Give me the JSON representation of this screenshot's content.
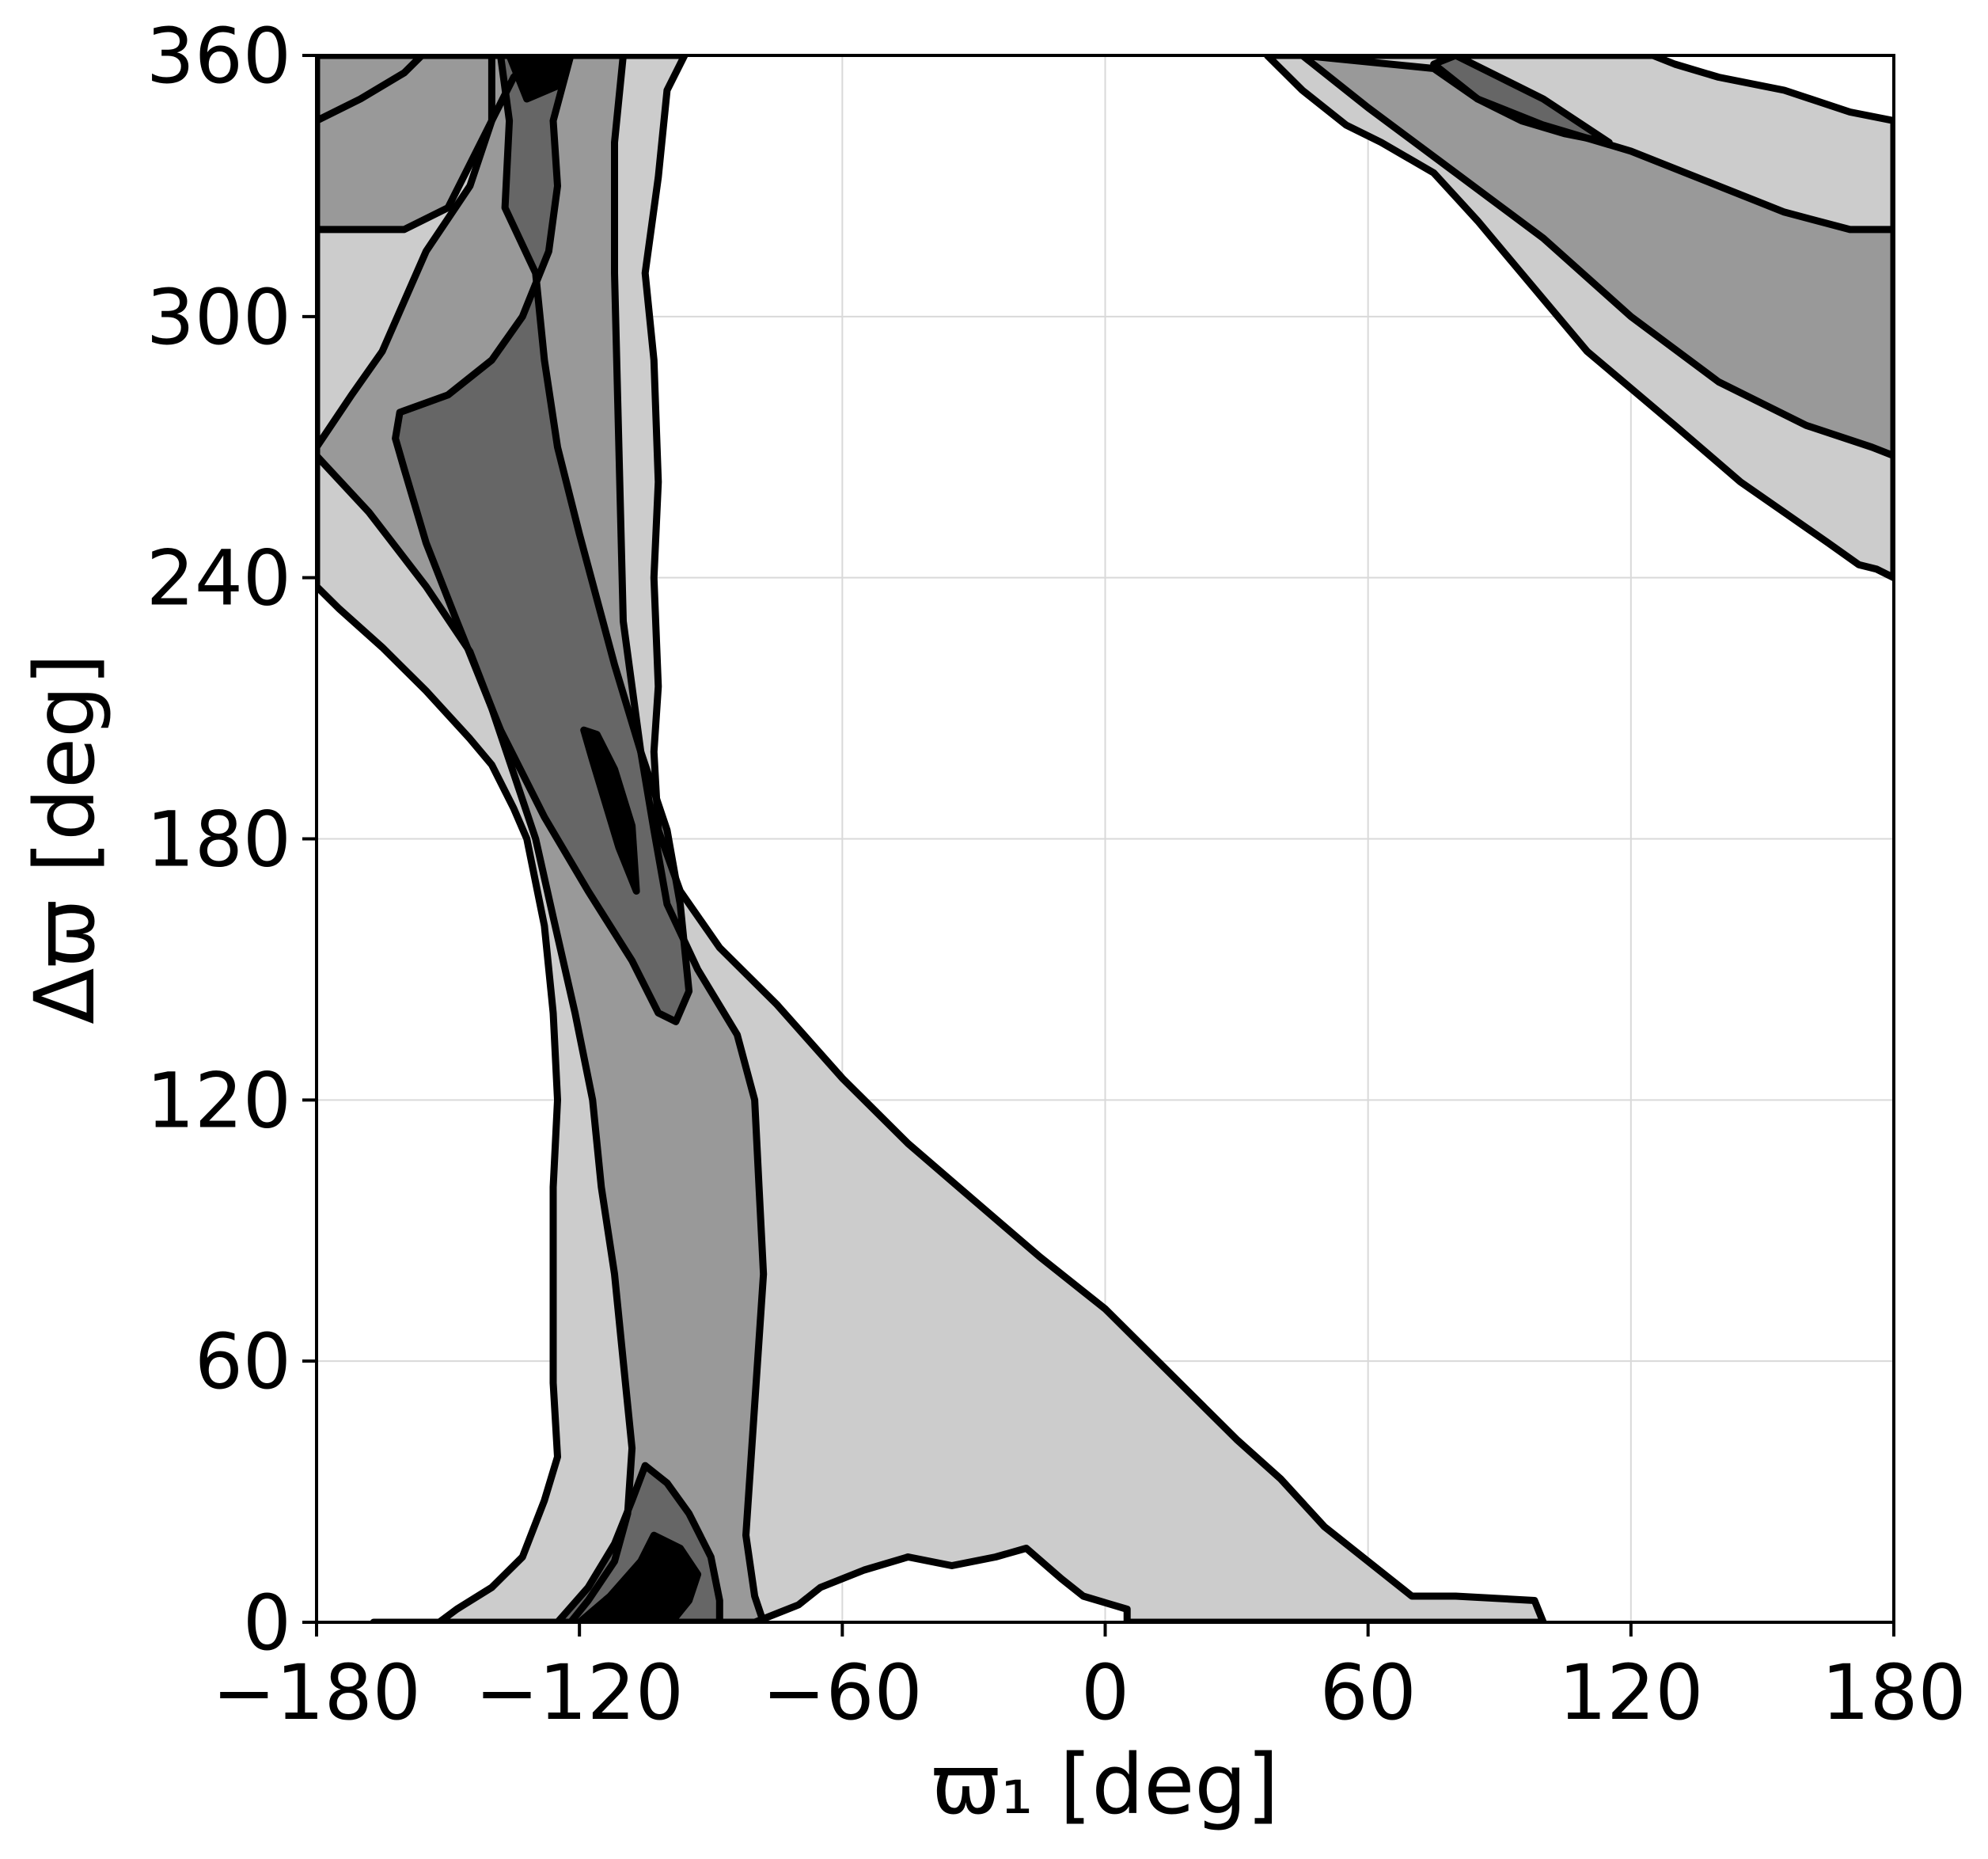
{
  "chart_data": {
    "type": "contour",
    "xlabel": "ϖ₁ [deg]",
    "ylabel": "Δϖ [deg]",
    "xlim": [
      -180,
      180
    ],
    "ylim": [
      0,
      360
    ],
    "xticks": [
      "−180",
      "−120",
      "−60",
      "0",
      "60",
      "120",
      "180"
    ],
    "yticks": [
      "0",
      "60",
      "120",
      "180",
      "240",
      "300",
      "360"
    ],
    "xtick_values": [
      -180,
      -120,
      -60,
      0,
      60,
      120,
      180
    ],
    "ytick_values": [
      0,
      60,
      120,
      180,
      240,
      300,
      360
    ],
    "grid": true,
    "colors": {
      "level1": "#cccccc",
      "level2": "#999999",
      "level3": "#666666",
      "level4": "#000000",
      "line": "#000000"
    },
    "levels": [
      {
        "level": 1,
        "regions": [
          [
            [
              -180,
              238
            ],
            [
              -175,
              233
            ],
            [
              -165,
              224
            ],
            [
              -155,
              214
            ],
            [
              -145,
              203
            ],
            [
              -140,
              197
            ],
            [
              -135,
              187
            ],
            [
              -132,
              180
            ],
            [
              -128,
              160
            ],
            [
              -126,
              140
            ],
            [
              -125,
              120
            ],
            [
              -126,
              100
            ],
            [
              -126,
              80
            ],
            [
              -126,
              55
            ],
            [
              -125,
              38
            ],
            [
              -128,
              28
            ],
            [
              -133,
              15
            ],
            [
              -140,
              8
            ],
            [
              -148,
              3
            ],
            [
              -152,
              0
            ],
            [
              -155,
              0
            ],
            [
              -160,
              0
            ],
            [
              -167,
              0
            ],
            [
              -80,
              0
            ],
            [
              -70,
              4
            ],
            [
              -65,
              8
            ],
            [
              -55,
              12
            ],
            [
              -45,
              15
            ],
            [
              -35,
              13
            ],
            [
              -25,
              15
            ],
            [
              -18,
              17
            ],
            [
              -10,
              10
            ],
            [
              -5,
              6
            ],
            [
              5,
              3
            ],
            [
              5,
              0
            ],
            [
              100,
              0
            ],
            [
              98,
              5
            ],
            [
              80,
              6
            ],
            [
              70,
              6
            ],
            [
              65,
              10
            ],
            [
              50,
              22
            ],
            [
              40,
              33
            ],
            [
              30,
              42
            ],
            [
              20,
              52
            ],
            [
              10,
              62
            ],
            [
              0,
              72
            ],
            [
              -5,
              76
            ],
            [
              -15,
              84
            ],
            [
              -30,
              97
            ],
            [
              -45,
              110
            ],
            [
              -60,
              125
            ],
            [
              -75,
              142
            ],
            [
              -88,
              155
            ],
            [
              -97,
              168
            ],
            [
              -102,
              182
            ],
            [
              -103,
              200
            ],
            [
              -102,
              215
            ],
            [
              -103,
              240
            ],
            [
              -102,
              262
            ],
            [
              -103,
              290
            ],
            [
              -105,
              310
            ],
            [
              -102,
              332
            ],
            [
              -100,
              352
            ],
            [
              -96,
              360
            ],
            [
              -180,
              360
            ]
          ],
          [
            [
              -180,
              345
            ],
            [
              -170,
              350
            ],
            [
              -160,
              356
            ],
            [
              -156,
              360
            ],
            [
              -180,
              360
            ]
          ],
          [
            [
              37,
              360
            ],
            [
              45,
              352
            ],
            [
              55,
              344
            ],
            [
              63,
              340
            ],
            [
              75,
              333
            ],
            [
              85,
              322
            ],
            [
              95,
              310
            ],
            [
              110,
              292
            ],
            [
              130,
              275
            ],
            [
              145,
              262
            ],
            [
              155,
              255
            ],
            [
              165,
              248
            ],
            [
              172,
              243
            ],
            [
              176,
              242
            ],
            [
              180,
              240
            ],
            [
              180,
              345
            ],
            [
              170,
              347
            ],
            [
              155,
              352
            ],
            [
              140,
              355
            ],
            [
              130,
              358
            ],
            [
              125,
              360
            ]
          ]
        ]
      },
      {
        "level": 2,
        "regions": [
          [
            [
              -180,
              320
            ],
            [
              -170,
              320
            ],
            [
              -160,
              320
            ],
            [
              -150,
              325
            ],
            [
              -145,
              335
            ],
            [
              -140,
              345
            ],
            [
              -135,
              355
            ],
            [
              -130,
              360
            ],
            [
              -180,
              360
            ]
          ],
          [
            [
              -180,
              268
            ],
            [
              -168,
              255
            ],
            [
              -155,
              238
            ],
            [
              -145,
              223
            ],
            [
              -140,
              210
            ],
            [
              -135,
              195
            ],
            [
              -130,
              180
            ],
            [
              -126,
              162
            ],
            [
              -121,
              140
            ],
            [
              -117,
              120
            ],
            [
              -115,
              100
            ],
            [
              -112,
              80
            ],
            [
              -110,
              60
            ],
            [
              -108,
              40
            ],
            [
              -109,
              25
            ],
            [
              -112,
              14
            ],
            [
              -118,
              5
            ],
            [
              -122,
              0
            ],
            [
              -78,
              0
            ],
            [
              -80,
              6
            ],
            [
              -82,
              20
            ],
            [
              -80,
              50
            ],
            [
              -78,
              80
            ],
            [
              -79,
              100
            ],
            [
              -80,
              120
            ],
            [
              -84,
              135
            ],
            [
              -93,
              150
            ],
            [
              -100,
              165
            ],
            [
              -103,
              182
            ],
            [
              -106,
              200
            ],
            [
              -110,
              230
            ],
            [
              -111,
              270
            ],
            [
              -112,
              310
            ],
            [
              -112,
              340
            ],
            [
              -110,
              360
            ],
            [
              -140,
              360
            ],
            [
              -140,
              345
            ],
            [
              -145,
              330
            ],
            [
              -155,
              315
            ],
            [
              -165,
              292
            ],
            [
              -172,
              282
            ],
            [
              -180,
              270
            ]
          ],
          [
            [
              45,
              360
            ],
            [
              60,
              348
            ],
            [
              80,
              333
            ],
            [
              100,
              318
            ],
            [
              120,
              300
            ],
            [
              140,
              285
            ],
            [
              160,
              275
            ],
            [
              175,
              270
            ],
            [
              180,
              268
            ],
            [
              180,
              320
            ],
            [
              170,
              320
            ],
            [
              155,
              324
            ],
            [
              140,
              330
            ],
            [
              120,
              338
            ],
            [
              100,
              344
            ],
            [
              85,
              350
            ],
            [
              75,
              357
            ]
          ]
        ]
      },
      {
        "level": 3,
        "regions": [
          [
            [
              -161,
              278
            ],
            [
              -150,
              282
            ],
            [
              -140,
              290
            ],
            [
              -133,
              300
            ],
            [
              -127,
              315
            ],
            [
              -125,
              330
            ],
            [
              -126,
              345
            ],
            [
              -122,
              360
            ],
            [
              -138,
              360
            ],
            [
              -136,
              345
            ],
            [
              -137,
              325
            ],
            [
              -130,
              310
            ],
            [
              -128,
              290
            ],
            [
              -125,
              270
            ],
            [
              -120,
              250
            ],
            [
              -112,
              220
            ],
            [
              -106,
              200
            ],
            [
              -100,
              182
            ],
            [
              -97,
              165
            ],
            [
              -95,
              145
            ],
            [
              -98,
              138
            ],
            [
              -102,
              140
            ],
            [
              -108,
              152
            ],
            [
              -118,
              168
            ],
            [
              -128,
              185
            ],
            [
              -138,
              205
            ],
            [
              -148,
              230
            ],
            [
              -155,
              248
            ],
            [
              -160,
              265
            ],
            [
              -162,
              272
            ]
          ],
          [
            [
              -125,
              0
            ],
            [
              -118,
              8
            ],
            [
              -112,
              18
            ],
            [
              -108,
              28
            ],
            [
              -105,
              36
            ],
            [
              -100,
              32
            ],
            [
              -95,
              25
            ],
            [
              -90,
              15
            ],
            [
              -88,
              5
            ],
            [
              -88,
              0
            ]
          ],
          [
            [
              75,
              358
            ],
            [
              85,
              350
            ],
            [
              95,
              345
            ],
            [
              105,
              342
            ],
            [
              115,
              340
            ],
            [
              100,
              350
            ],
            [
              90,
              355
            ],
            [
              80,
              360
            ]
          ]
        ]
      },
      {
        "level": 4,
        "regions": [
          [
            [
              -119,
              205
            ],
            [
              -117,
              198
            ],
            [
              -114,
              188
            ],
            [
              -111,
              178
            ],
            [
              -107,
              168
            ],
            [
              -108,
              183
            ],
            [
              -112,
              196
            ],
            [
              -116,
              204
            ]
          ],
          [
            [
              -120,
              0
            ],
            [
              -113,
              6
            ],
            [
              -106,
              14
            ],
            [
              -103,
              20
            ],
            [
              -97,
              17
            ],
            [
              -93,
              11
            ],
            [
              -95,
              5
            ],
            [
              -99,
              0
            ]
          ],
          [
            [
              -136,
              360
            ],
            [
              -132,
              350
            ],
            [
              -125,
              353
            ],
            [
              -122,
              360
            ]
          ]
        ]
      }
    ]
  }
}
